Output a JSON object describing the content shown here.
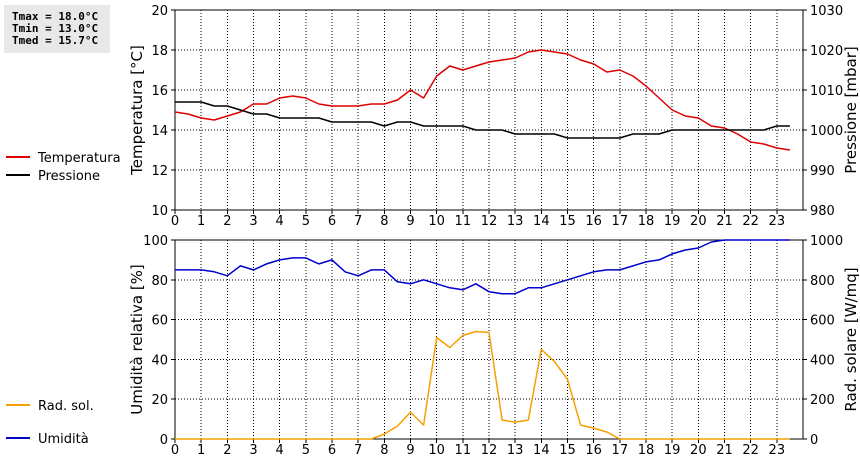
{
  "stats": {
    "tmax": "Tmax = 18.0°C",
    "tmin": "Tmin = 13.0°C",
    "tmed": "Tmed = 15.7°C"
  },
  "chart_data": [
    {
      "type": "line",
      "ylabel": "Temperatura [°C]",
      "y2label": "Pressione [mbar]",
      "xlim": [
        0,
        24
      ],
      "xticks": [
        "0",
        "1",
        "2",
        "3",
        "4",
        "5",
        "6",
        "7",
        "8",
        "9",
        "10",
        "11",
        "12",
        "13",
        "14",
        "15",
        "16",
        "17",
        "18",
        "19",
        "20",
        "21",
        "22",
        "23"
      ],
      "ylim": [
        10,
        20
      ],
      "yticks": [
        "10",
        "12",
        "14",
        "16",
        "18",
        "20"
      ],
      "y2lim": [
        980,
        1030
      ],
      "y2ticks": [
        "980",
        "990",
        "1000",
        "1010",
        "1020",
        "1030"
      ],
      "grid": true,
      "legend_position": "left",
      "series": [
        {
          "name": "Temperatura",
          "color": "#dd0000",
          "axis": "left",
          "x": [
            0,
            0.5,
            1,
            1.5,
            2,
            2.5,
            3,
            3.5,
            4,
            4.5,
            5,
            5.5,
            6,
            6.5,
            7,
            7.5,
            8,
            8.5,
            9,
            9.5,
            10,
            10.5,
            11,
            11.5,
            12,
            12.5,
            13,
            13.5,
            14,
            14.5,
            15,
            15.5,
            16,
            16.5,
            17,
            17.5,
            18,
            18.5,
            19,
            19.5,
            20,
            20.5,
            21,
            21.5,
            22,
            22.5,
            23,
            23.5
          ],
          "values": [
            14.9,
            14.8,
            14.6,
            14.5,
            14.7,
            14.9,
            15.3,
            15.3,
            15.6,
            15.7,
            15.6,
            15.3,
            15.2,
            15.2,
            15.2,
            15.3,
            15.3,
            15.5,
            16.0,
            15.6,
            16.7,
            17.2,
            17.0,
            17.2,
            17.4,
            17.5,
            17.6,
            17.9,
            18.0,
            17.9,
            17.8,
            17.5,
            17.3,
            16.9,
            17.0,
            16.7,
            16.2,
            15.6,
            15.0,
            14.7,
            14.6,
            14.2,
            14.1,
            13.8,
            13.4,
            13.3,
            13.1,
            13.0
          ]
        },
        {
          "name": "Pressione",
          "color": "#000000",
          "axis": "right",
          "x": [
            0,
            0.5,
            1,
            1.5,
            2,
            2.5,
            3,
            3.5,
            4,
            4.5,
            5,
            5.5,
            6,
            6.5,
            7,
            7.5,
            8,
            8.5,
            9,
            9.5,
            10,
            10.5,
            11,
            11.5,
            12,
            12.5,
            13,
            13.5,
            14,
            14.5,
            15,
            15.5,
            16,
            16.5,
            17,
            17.5,
            18,
            18.5,
            19,
            19.5,
            20,
            20.5,
            21,
            21.5,
            22,
            22.5,
            23,
            23.5
          ],
          "values": [
            1007,
            1007,
            1007,
            1006,
            1006,
            1005,
            1004,
            1004,
            1003,
            1003,
            1003,
            1003,
            1002,
            1002,
            1002,
            1002,
            1001,
            1002,
            1002,
            1001,
            1001,
            1001,
            1001,
            1000,
            1000,
            1000,
            999,
            999,
            999,
            999,
            998,
            998,
            998,
            998,
            998,
            999,
            999,
            999,
            1000,
            1000,
            1000,
            1000,
            1000,
            1000,
            1000,
            1000,
            1001,
            1001
          ]
        }
      ]
    },
    {
      "type": "line",
      "ylabel": "Umidità relativa [%]",
      "y2label": "Rad. solare [W/mq]",
      "xlim": [
        0,
        24
      ],
      "xticks": [
        "0",
        "1",
        "2",
        "3",
        "4",
        "5",
        "6",
        "7",
        "8",
        "9",
        "10",
        "11",
        "12",
        "13",
        "14",
        "15",
        "16",
        "17",
        "18",
        "19",
        "20",
        "21",
        "22",
        "23"
      ],
      "ylim": [
        0,
        100
      ],
      "yticks": [
        "0",
        "20",
        "40",
        "60",
        "80",
        "100"
      ],
      "y2lim": [
        0,
        1000
      ],
      "y2ticks": [
        "0",
        "200",
        "400",
        "600",
        "800",
        "1000"
      ],
      "grid": true,
      "legend_position": "left",
      "series": [
        {
          "name": "Umidità",
          "color": "#0000cc",
          "axis": "left",
          "x": [
            0,
            0.5,
            1,
            1.5,
            2,
            2.5,
            3,
            3.5,
            4,
            4.5,
            5,
            5.5,
            6,
            6.5,
            7,
            7.5,
            8,
            8.5,
            9,
            9.5,
            10,
            10.5,
            11,
            11.5,
            12,
            12.5,
            13,
            13.5,
            14,
            14.5,
            15,
            15.5,
            16,
            16.5,
            17,
            17.5,
            18,
            18.5,
            19,
            19.5,
            20,
            20.5,
            21,
            21.5,
            22,
            22.5,
            23,
            23.5
          ],
          "values": [
            85,
            85,
            85,
            84,
            82,
            87,
            85,
            88,
            90,
            91,
            91,
            88,
            90,
            84,
            82,
            85,
            85,
            79,
            78,
            80,
            78,
            76,
            75,
            78,
            74,
            73,
            73,
            76,
            76,
            78,
            80,
            82,
            84,
            85,
            85,
            87,
            89,
            90,
            93,
            95,
            96,
            99,
            100,
            100,
            100,
            100,
            100,
            100
          ]
        },
        {
          "name": "Rad. sol.",
          "color": "#f5a000",
          "axis": "right",
          "x": [
            0,
            1,
            2,
            3,
            4,
            5,
            6,
            7,
            7.5,
            8,
            8.5,
            9,
            9.5,
            10,
            10.5,
            11,
            11.5,
            12,
            12.5,
            13,
            13.5,
            14,
            14.5,
            15,
            15.5,
            16,
            16.5,
            17,
            18,
            19,
            20,
            21,
            22,
            23,
            23.5
          ],
          "values": [
            0,
            0,
            0,
            0,
            0,
            0,
            0,
            0,
            0,
            25,
            65,
            135,
            70,
            510,
            460,
            520,
            540,
            535,
            95,
            85,
            95,
            450,
            390,
            300,
            70,
            55,
            35,
            0,
            0,
            0,
            0,
            0,
            0,
            0,
            0
          ]
        }
      ]
    }
  ]
}
